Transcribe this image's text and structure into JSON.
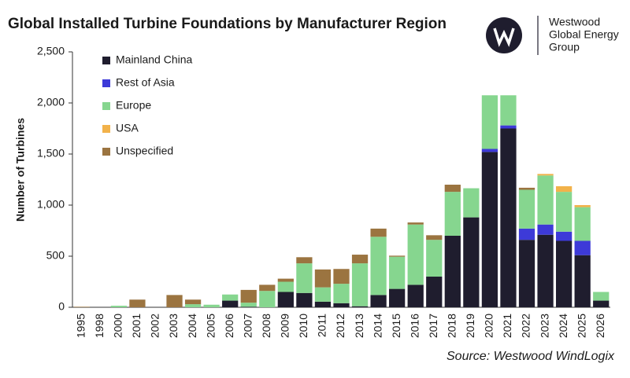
{
  "chart_data": {
    "type": "stacked-bar",
    "title": "Global Installed Turbine Foundations by Manufacturer Region",
    "y_label": "Number of Turbines",
    "source": "Source: Westwood WindLogix",
    "logo_text": [
      "Westwood",
      "Global Energy",
      "Group"
    ],
    "categories": [
      "1995",
      "1998",
      "2000",
      "2001",
      "2002",
      "2003",
      "2004",
      "2005",
      "2006",
      "2007",
      "2008",
      "2009",
      "2010",
      "2011",
      "2012",
      "2013",
      "2014",
      "2015",
      "2016",
      "2017",
      "2018",
      "2019",
      "2020",
      "2021",
      "2022",
      "2023",
      "2024",
      "2025",
      "2026"
    ],
    "series": [
      {
        "name": "Mainland China",
        "color": "#1f1d2e",
        "values": [
          0,
          0,
          0,
          0,
          0,
          0,
          0,
          0,
          65,
          5,
          0,
          150,
          140,
          55,
          40,
          10,
          120,
          180,
          220,
          300,
          700,
          880,
          1520,
          1750,
          660,
          710,
          650,
          510,
          65
        ]
      },
      {
        "name": "Rest of Asia",
        "color": "#3d3ad8",
        "values": [
          0,
          0,
          0,
          0,
          0,
          0,
          0,
          0,
          0,
          0,
          0,
          0,
          0,
          0,
          0,
          0,
          0,
          0,
          0,
          0,
          0,
          0,
          30,
          30,
          110,
          100,
          90,
          140,
          0
        ]
      },
      {
        "name": "Europe",
        "color": "#86d68f",
        "values": [
          0,
          0,
          15,
          0,
          0,
          0,
          30,
          25,
          60,
          40,
          160,
          100,
          290,
          140,
          190,
          420,
          570,
          315,
          590,
          360,
          430,
          285,
          525,
          295,
          380,
          480,
          390,
          330,
          85
        ]
      },
      {
        "name": "USA",
        "color": "#f2b24a",
        "values": [
          0,
          0,
          0,
          0,
          0,
          0,
          0,
          0,
          0,
          0,
          0,
          0,
          0,
          0,
          0,
          0,
          0,
          0,
          0,
          0,
          0,
          0,
          0,
          0,
          0,
          15,
          55,
          20,
          0
        ]
      },
      {
        "name": "Unspecified",
        "color": "#9b7440",
        "values": [
          5,
          0,
          0,
          75,
          0,
          120,
          45,
          0,
          0,
          125,
          60,
          30,
          60,
          175,
          145,
          85,
          80,
          10,
          20,
          45,
          70,
          0,
          0,
          0,
          20,
          0,
          0,
          0,
          0
        ]
      }
    ],
    "ylim": [
      0,
      2500
    ],
    "yticks": [
      0,
      500,
      {
        "value": 1000,
        "label": "1,000"
      },
      {
        "value": 1500,
        "label": "1,500"
      },
      {
        "value": 2000,
        "label": "2,000"
      },
      {
        "value": 2500,
        "label": "2,500"
      }
    ],
    "legend": "upper-left"
  }
}
